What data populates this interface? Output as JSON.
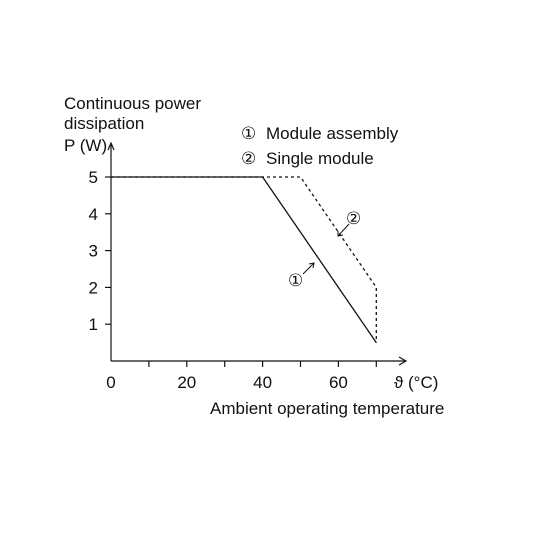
{
  "chart_data": {
    "type": "line",
    "ylabel_lines": [
      "Continuous power",
      "dissipation",
      "P (W)"
    ],
    "xlabel_symbol": "ϑ (°C)",
    "xlabel": "Ambient operating temperature",
    "x_ticks": [
      0,
      20,
      40,
      60
    ],
    "y_ticks": [
      1,
      2,
      3,
      4,
      5
    ],
    "x_minor_ticks": [
      10,
      30,
      50,
      70
    ],
    "xlim": [
      0,
      78
    ],
    "ylim": [
      0,
      5.5
    ],
    "grid": false,
    "legend": [
      {
        "marker": "①",
        "text": "Module assembly"
      },
      {
        "marker": "②",
        "text": "Single module"
      }
    ],
    "series": [
      {
        "name": "Module assembly",
        "marker": "①",
        "style": "solid",
        "x": [
          0,
          40,
          70
        ],
        "y": [
          5,
          5,
          0.5
        ]
      },
      {
        "name": "Single module",
        "marker": "②",
        "style": "dashed",
        "x": [
          0,
          50,
          70,
          70
        ],
        "y": [
          5,
          5,
          2,
          0.5
        ]
      }
    ],
    "colors": {
      "axis": "#111111",
      "line": "#111111"
    }
  }
}
